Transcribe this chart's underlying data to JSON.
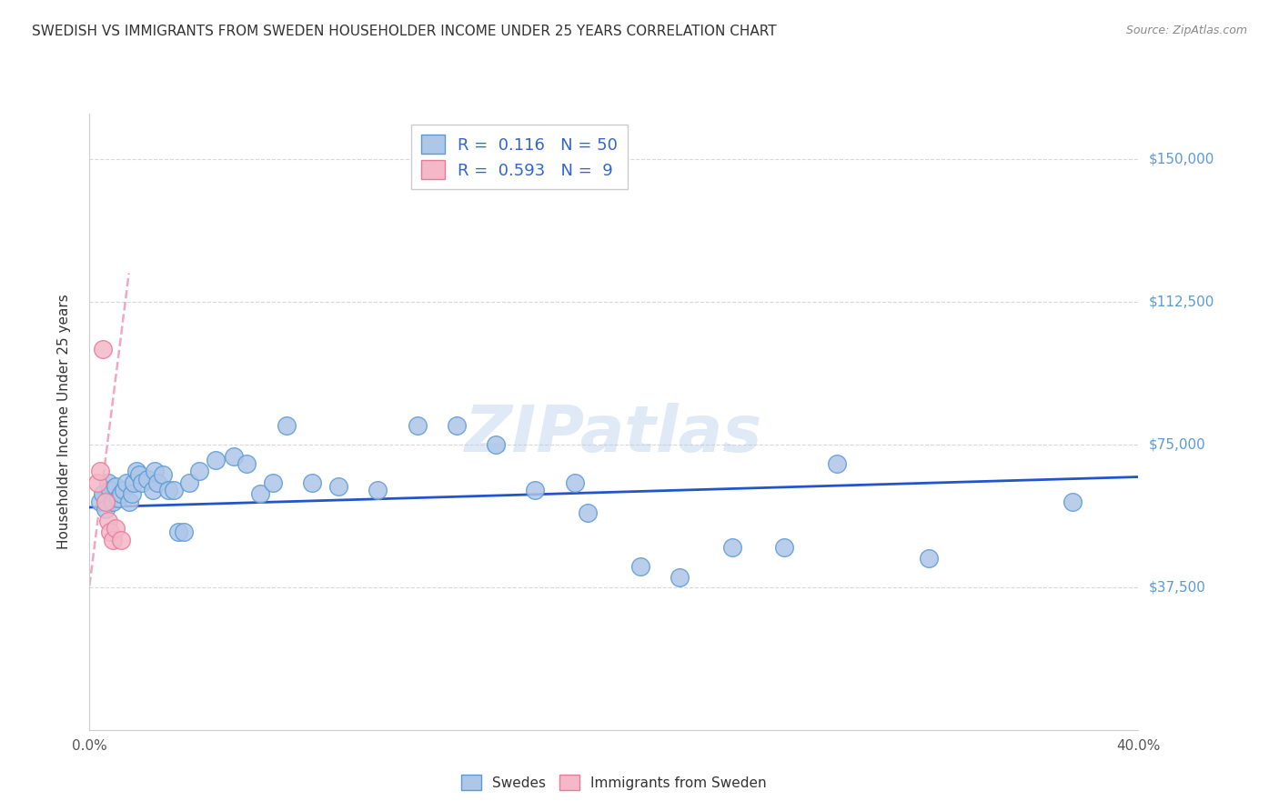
{
  "title": "SWEDISH VS IMMIGRANTS FROM SWEDEN HOUSEHOLDER INCOME UNDER 25 YEARS CORRELATION CHART",
  "source": "Source: ZipAtlas.com",
  "ylabel": "Householder Income Under 25 years",
  "xlim": [
    0.0,
    0.4
  ],
  "ylim": [
    0,
    162000
  ],
  "yticks": [
    37500,
    75000,
    112500,
    150000
  ],
  "ytick_labels": [
    "$37,500",
    "$75,000",
    "$112,500",
    "$150,000"
  ],
  "xticks": [
    0.0,
    0.05,
    0.1,
    0.15,
    0.2,
    0.25,
    0.3,
    0.35,
    0.4
  ],
  "xtick_labels": [
    "0.0%",
    "",
    "",
    "",
    "",
    "",
    "",
    "",
    "40.0%"
  ],
  "background_color": "#ffffff",
  "grid_color": "#d8d8d8",
  "swedes_color": "#aec6e8",
  "swedes_edge_color": "#5b9bd5",
  "immigrants_color": "#f4b8c8",
  "immigrants_edge_color": "#e87a9a",
  "blue_line_color": "#2255cc",
  "pink_line_color": "#e87a9a",
  "watermark": "ZIPatlas",
  "watermark_color": "#aec6e8",
  "legend_R_swedes": "0.116",
  "legend_N_swedes": "50",
  "legend_R_immigrants": "0.593",
  "legend_N_immigrants": "9",
  "swedes_x": [
    0.004,
    0.005,
    0.006,
    0.007,
    0.008,
    0.009,
    0.01,
    0.011,
    0.012,
    0.013,
    0.014,
    0.015,
    0.016,
    0.017,
    0.018,
    0.019,
    0.02,
    0.022,
    0.024,
    0.025,
    0.026,
    0.028,
    0.03,
    0.032,
    0.034,
    0.036,
    0.038,
    0.042,
    0.048,
    0.055,
    0.06,
    0.065,
    0.07,
    0.075,
    0.085,
    0.095,
    0.11,
    0.125,
    0.14,
    0.155,
    0.17,
    0.185,
    0.19,
    0.21,
    0.225,
    0.245,
    0.265,
    0.285,
    0.32,
    0.375
  ],
  "swedes_y": [
    60000,
    62000,
    58000,
    65000,
    63000,
    60000,
    64000,
    61000,
    62000,
    63000,
    65000,
    60000,
    62000,
    65000,
    68000,
    67000,
    65000,
    66000,
    63000,
    68000,
    65000,
    67000,
    63000,
    63000,
    52000,
    52000,
    65000,
    68000,
    71000,
    72000,
    70000,
    62000,
    65000,
    80000,
    65000,
    64000,
    63000,
    80000,
    80000,
    75000,
    63000,
    65000,
    57000,
    43000,
    40000,
    48000,
    48000,
    70000,
    45000,
    60000
  ],
  "immigrants_x": [
    0.003,
    0.004,
    0.005,
    0.006,
    0.007,
    0.008,
    0.009,
    0.01,
    0.012
  ],
  "immigrants_y": [
    65000,
    68000,
    100000,
    60000,
    55000,
    52000,
    50000,
    53000,
    50000
  ],
  "swedes_trend_x": [
    0.0,
    0.4
  ],
  "swedes_trend_y": [
    58500,
    66500
  ],
  "immigrants_trend_x": [
    0.0,
    0.015
  ],
  "immigrants_trend_y": [
    38000,
    120000
  ]
}
